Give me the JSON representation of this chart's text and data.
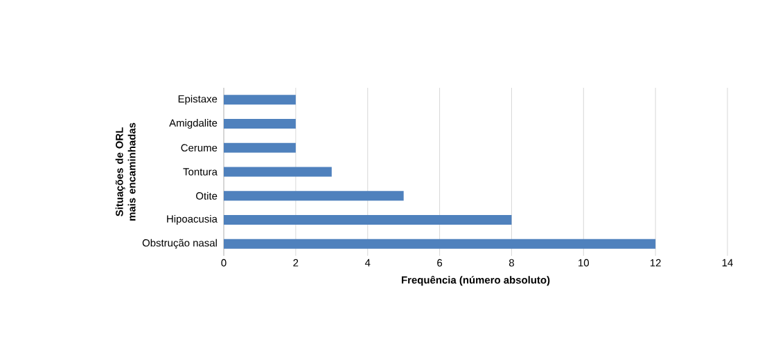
{
  "chart_data": {
    "type": "bar",
    "orientation": "horizontal",
    "categories": [
      "Epistaxe",
      "Amigdalite",
      "Cerume",
      "Tontura",
      "Otite",
      "Hipoacusia",
      "Obstrução nasal"
    ],
    "values": [
      2,
      2,
      2,
      3,
      5,
      8,
      12
    ],
    "color": "#4f81bd",
    "xlim": [
      0,
      14
    ],
    "xticks": [
      0,
      2,
      4,
      6,
      8,
      10,
      12,
      14
    ],
    "grid": "x",
    "xlabel": "Frequência (número absoluto)",
    "ylabel": "Situações de ORL mais encaminhadas"
  }
}
